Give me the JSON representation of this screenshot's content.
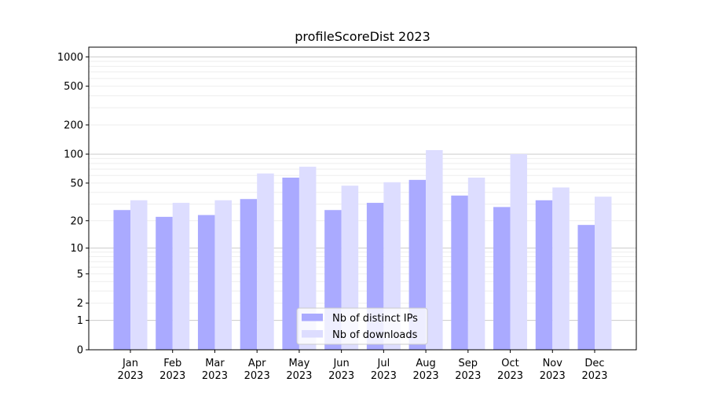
{
  "chart_data": {
    "type": "bar",
    "title": "profileScoreDist 2023",
    "xlabel": "",
    "ylabel": "",
    "yscale": "log(1+y)",
    "ylim": [
      0,
      1300
    ],
    "yticks": [
      0,
      1,
      2,
      5,
      10,
      20,
      50,
      100,
      200,
      500,
      1000
    ],
    "grid": true,
    "legend_position": "lower-center",
    "categories": [
      "Jan\n2023",
      "Feb\n2023",
      "Mar\n2023",
      "Apr\n2023",
      "May\n2023",
      "Jun\n2023",
      "Jul\n2023",
      "Aug\n2023",
      "Sep\n2023",
      "Oct\n2023",
      "Nov\n2023",
      "Dec\n2023"
    ],
    "series": [
      {
        "name": "Nb of distinct IPs",
        "color": "#aaaaff",
        "values": [
          26,
          22,
          23,
          34,
          57,
          26,
          31,
          54,
          37,
          28,
          33,
          18
        ]
      },
      {
        "name": "Nb of downloads",
        "color": "#ddddff",
        "values": [
          33,
          31,
          33,
          63,
          74,
          47,
          51,
          110,
          57,
          100,
          45,
          36
        ]
      }
    ]
  }
}
